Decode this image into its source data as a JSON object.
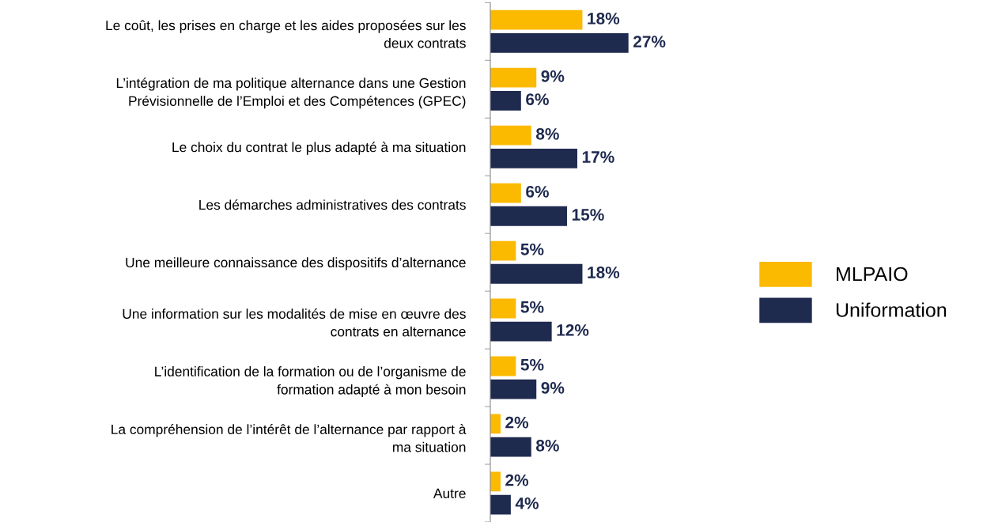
{
  "chart_data": {
    "type": "bar",
    "orientation": "horizontal",
    "legend": "right",
    "grid": false,
    "data_labels": true,
    "categories": [
      "Le coût, les prises en charge et les aides proposées sur les\ndeux contrats",
      "L’intégration de ma politique alternance dans une Gestion\nPrévisionnelle de l’Emploi et des Compétences (GPEC)",
      "Le choix du contrat le plus adapté à ma situation",
      "Les démarches administratives des contrats",
      "Une meilleure connaissance des dispositifs d’alternance",
      "Une information sur les modalités de mise en œuvre des\ncontrats en alternance",
      "L’identification de la formation ou de l’organisme de\nformation adapté à mon besoin",
      "La compréhension de l’intérêt de l’alternance par rapport à\nma situation",
      "Autre"
    ],
    "series": [
      {
        "name": "MLPAIO",
        "color": "#fbb900",
        "values": [
          18,
          9,
          8,
          6,
          5,
          5,
          5,
          2,
          2
        ],
        "value_labels": [
          "18%",
          "9%",
          "8%",
          "6%",
          "5%",
          "5%",
          "5%",
          "2%",
          "2%"
        ]
      },
      {
        "name": "Uniformation",
        "color": "#1f2a4f",
        "values": [
          27,
          6,
          17,
          15,
          18,
          12,
          9,
          8,
          4
        ],
        "value_labels": [
          "27%",
          "6%",
          "17%",
          "15%",
          "18%",
          "12%",
          "9%",
          "8%",
          "4%"
        ]
      }
    ]
  }
}
